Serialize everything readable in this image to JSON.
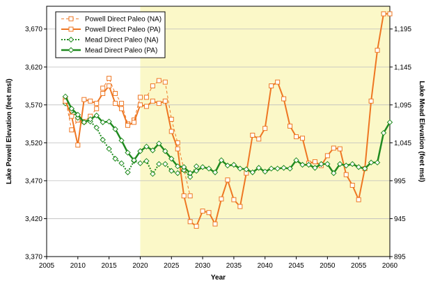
{
  "chart_data": {
    "type": "line",
    "title": "",
    "xlabel": "Year",
    "ylabel_left": "Lake Powell Elevation (feet msl)",
    "ylabel_right": "Lake Mead Elevation (feet msl)",
    "xlim": [
      2005,
      2060
    ],
    "xticks": [
      "2005",
      "2010",
      "2015",
      "2020",
      "2025",
      "2030",
      "2035",
      "2040",
      "2045",
      "2050",
      "2055",
      "2060"
    ],
    "ylim_left": [
      3370,
      3700
    ],
    "yticks_left": [
      "3,370",
      "3,420",
      "3,470",
      "3,520",
      "3,570",
      "3,620",
      "3,670"
    ],
    "ylim_right": [
      895,
      1225
    ],
    "yticks_right": [
      "895",
      "945",
      "995",
      "1,045",
      "1,095",
      "1,145",
      "1,195"
    ],
    "shaded_x_range": [
      2020,
      2060
    ],
    "legend_position": "top-left",
    "colors": {
      "powell": "#ee7622",
      "mead": "#1f8a1f",
      "plot_bg": "#ffffff",
      "shade_bg": "#fbf8c8",
      "grid": "#bdbdbd"
    },
    "series": [
      {
        "name": "Powell Direct Paleo (NA)",
        "axis": "left",
        "style": "dashed-square",
        "x": [
          2008,
          2009,
          2010,
          2011,
          2012,
          2013,
          2014,
          2015,
          2016,
          2017,
          2018,
          2019,
          2020,
          2021,
          2022,
          2023,
          2024,
          2025,
          2026,
          2027,
          2028
        ],
        "values": [
          3578,
          3537,
          3550,
          3548,
          3555,
          3565,
          3592,
          3605,
          3585,
          3572,
          3545,
          3550,
          3580,
          3580,
          3595,
          3602,
          3600,
          3551,
          3520,
          3485,
          3450
        ]
      },
      {
        "name": "Powell Direct Paleo (PA)",
        "axis": "left",
        "style": "solid-square",
        "x": [
          2008,
          2009,
          2010,
          2011,
          2012,
          2013,
          2014,
          2015,
          2016,
          2017,
          2018,
          2019,
          2020,
          2021,
          2022,
          2023,
          2024,
          2025,
          2026,
          2027,
          2028,
          2029,
          2030,
          2031,
          2032,
          2033,
          2034,
          2035,
          2036,
          2037,
          2038,
          2039,
          2040,
          2041,
          2042,
          2043,
          2044,
          2045,
          2046,
          2047,
          2048,
          2049,
          2050,
          2051,
          2052,
          2053,
          2054,
          2055,
          2056,
          2057,
          2058,
          2059,
          2060
        ],
        "values": [
          3575,
          3555,
          3517,
          3577,
          3575,
          3572,
          3585,
          3595,
          3572,
          3565,
          3543,
          3547,
          3570,
          3568,
          3575,
          3572,
          3575,
          3535,
          3512,
          3450,
          3416,
          3410,
          3430,
          3428,
          3413,
          3446,
          3471,
          3445,
          3436,
          3480,
          3530,
          3525,
          3539,
          3595,
          3600,
          3578,
          3542,
          3528,
          3526,
          3493,
          3495,
          3490,
          3503,
          3513,
          3512,
          3478,
          3464,
          3445,
          3486,
          3575,
          3642,
          3690,
          3690
        ]
      },
      {
        "name": "Mead Direct Paleo (NA)",
        "axis": "right",
        "style": "dotted-diamond",
        "x": [
          2008,
          2009,
          2010,
          2011,
          2012,
          2013,
          2014,
          2015,
          2016,
          2017,
          2018,
          2019,
          2020,
          2021,
          2022,
          2023,
          2024,
          2025,
          2026,
          2027,
          2028,
          2029
        ],
        "values": [
          1097,
          1087,
          1078,
          1072,
          1073,
          1065,
          1049,
          1037,
          1024,
          1018,
          1006,
          1021,
          1018,
          1021,
          1004,
          1017,
          1017,
          1008,
          1005,
          1009,
          1000,
          1014
        ]
      },
      {
        "name": "Mead Direct Paleo (PA)",
        "axis": "right",
        "style": "solid-diamond",
        "x": [
          2008,
          2009,
          2010,
          2011,
          2012,
          2013,
          2014,
          2015,
          2016,
          2017,
          2018,
          2019,
          2020,
          2021,
          2022,
          2023,
          2024,
          2025,
          2026,
          2027,
          2028,
          2029,
          2030,
          2031,
          2032,
          2033,
          2034,
          2035,
          2036,
          2037,
          2038,
          2039,
          2040,
          2041,
          2042,
          2043,
          2044,
          2045,
          2046,
          2047,
          2048,
          2049,
          2050,
          2051,
          2052,
          2053,
          2054,
          2055,
          2056,
          2057,
          2058,
          2059,
          2060
        ],
        "values": [
          1106,
          1090,
          1082,
          1072,
          1076,
          1081,
          1072,
          1073,
          1063,
          1048,
          1032,
          1022,
          1034,
          1040,
          1035,
          1044,
          1034,
          1024,
          1014,
          1013,
          1005,
          1008,
          1013,
          1011,
          1006,
          1022,
          1015,
          1016,
          1011,
          1010,
          1006,
          1012,
          1007,
          1011,
          1011,
          1012,
          1011,
          1022,
          1016,
          1016,
          1012,
          1017,
          1017,
          1005,
          1017,
          1015,
          1017,
          1013,
          1011,
          1019,
          1019,
          1058,
          1072
        ]
      }
    ]
  }
}
